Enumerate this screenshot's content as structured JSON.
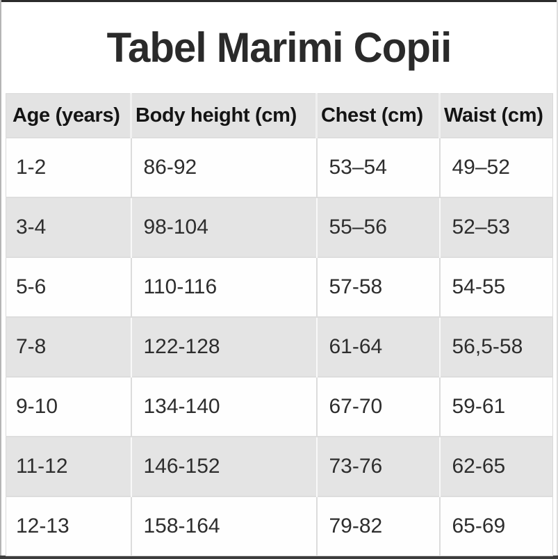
{
  "page": {
    "title": "Tabel Marimi Copii"
  },
  "chart_data": {
    "type": "table",
    "title": "Tabel Marimi Copii",
    "columns": [
      "Age (years)",
      "Body height (cm)",
      "Chest (cm)",
      "Waist (cm)"
    ],
    "rows": [
      [
        "1-2",
        "86-92",
        "53–54",
        "49–52"
      ],
      [
        "3-4",
        "98-104",
        "55–56",
        "52–53"
      ],
      [
        "5-6",
        "110-116",
        "57-58",
        "54-55"
      ],
      [
        "7-8",
        "122-128",
        "61-64",
        "56,5-58"
      ],
      [
        "9-10",
        "134-140",
        "67-70",
        "59-61"
      ],
      [
        "11-12",
        "146-152",
        "73-76",
        "62-65"
      ],
      [
        "12-13",
        "158-164",
        "79-82",
        "65-69"
      ]
    ],
    "layout": {
      "row_striping": "white and light gray alternating, header gray",
      "grid": "light gray cell borders"
    }
  },
  "colors": {
    "header_background": "#e3e3e3",
    "row_alt_background": "#e4e4e4",
    "row_background": "#fefefe",
    "text": "#2d2d2d",
    "title_text": "#2a2a2a",
    "grid_line": "#dcdcdc",
    "screenshot_edge": "#2b2b2b"
  }
}
